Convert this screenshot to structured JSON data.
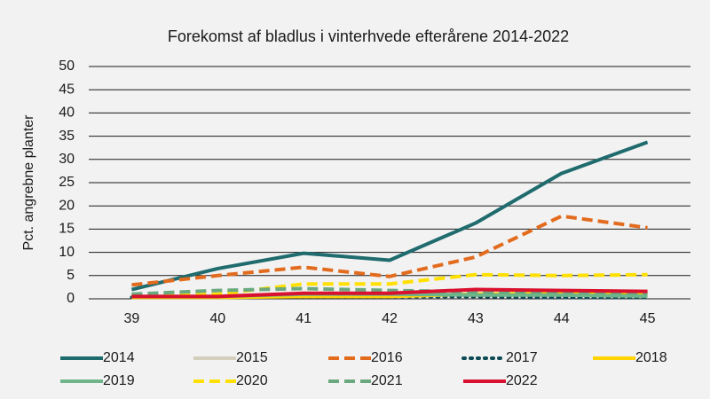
{
  "chart_data": {
    "type": "line",
    "title": "Forekomst af bladlus i vinterhvede efterårene 2014-2022",
    "y_label": "Pct. angrebne planter",
    "categories": [
      "39",
      "40",
      "41",
      "42",
      "43",
      "44",
      "45"
    ],
    "ylim": [
      0,
      50
    ],
    "yticks": [
      0,
      5,
      10,
      15,
      20,
      25,
      30,
      35,
      40,
      45,
      50
    ],
    "grid": true,
    "series": [
      {
        "name": "2014",
        "color": "#1f6b6e",
        "style": "solid",
        "values": [
          2,
          6.5,
          9.8,
          8.3,
          16.3,
          27,
          33.7
        ]
      },
      {
        "name": "2015",
        "color": "#d4cfbd",
        "style": "solid",
        "values": [
          0.5,
          0.5,
          1,
          1,
          1,
          1,
          0.8
        ]
      },
      {
        "name": "2016",
        "color": "#e26b1e",
        "style": "dashed",
        "values": [
          3,
          5,
          6.8,
          4.8,
          9,
          17.8,
          15.3
        ]
      },
      {
        "name": "2017",
        "color": "#0d4b55",
        "style": "dotted",
        "values": [
          0.3,
          0.3,
          0.5,
          0.5,
          0.5,
          0.3,
          0.3
        ]
      },
      {
        "name": "2018",
        "color": "#ffd400",
        "style": "solid",
        "values": [
          0.3,
          0.3,
          0.5,
          0.5,
          1,
          1.2,
          1
        ]
      },
      {
        "name": "2019",
        "color": "#6fb58a",
        "style": "solid",
        "values": [
          0.5,
          0.5,
          1,
          1,
          0.8,
          0.8,
          0.6
        ]
      },
      {
        "name": "2020",
        "color": "#ffe000",
        "style": "dashed",
        "values": [
          0.5,
          1,
          3.2,
          3.2,
          5.2,
          5,
          5.2
        ]
      },
      {
        "name": "2021",
        "color": "#6aa880",
        "style": "dashed",
        "values": [
          1,
          1.8,
          2.2,
          1.8,
          1.5,
          1.5,
          1.2
        ]
      },
      {
        "name": "2022",
        "color": "#d9102e",
        "style": "solid",
        "values": [
          0.5,
          0.5,
          1.2,
          1.2,
          2,
          1.8,
          1.6
        ]
      }
    ]
  }
}
